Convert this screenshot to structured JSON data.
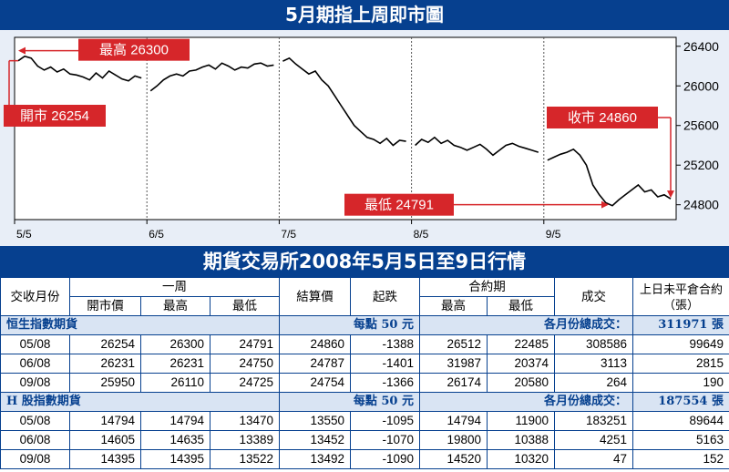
{
  "chart_title": "5月期指上周即市圖",
  "table_title": "期貨交易所2008年5月5日至9日行情",
  "chart_data": {
    "type": "line",
    "title": "5月期指上周即市圖",
    "x_tick_labels": [
      "5/5",
      "6/5",
      "7/5",
      "8/5",
      "9/5"
    ],
    "y_ticks": [
      24800,
      25200,
      25600,
      26000,
      26400
    ],
    "ylim": [
      24650,
      26490
    ],
    "grid": "vertical dashed at day boundaries",
    "line_color": "#000000",
    "days": [
      {
        "day": "5/5",
        "values": [
          26254,
          26300,
          26280,
          26200,
          26160,
          26190,
          26140,
          26170,
          26120,
          26110,
          26090,
          26060,
          26130,
          26080,
          26150,
          26110,
          26070,
          26050,
          26100,
          26080
        ]
      },
      {
        "day": "6/5",
        "values": [
          25950,
          26000,
          26060,
          26100,
          26120,
          26100,
          26150,
          26160,
          26190,
          26210,
          26170,
          26230,
          26200,
          26160,
          26190,
          26180,
          26220,
          26231,
          26200,
          26210
        ]
      },
      {
        "day": "7/5",
        "values": [
          26250,
          26280,
          26220,
          26170,
          26120,
          26150,
          26060,
          26000,
          25900,
          25800,
          25700,
          25600,
          25540,
          25480,
          25460,
          25420,
          25470,
          25400,
          25450,
          25440
        ]
      },
      {
        "day": "8/5",
        "values": [
          25400,
          25460,
          25430,
          25480,
          25420,
          25450,
          25400,
          25380,
          25350,
          25380,
          25410,
          25360,
          25300,
          25350,
          25400,
          25420,
          25390,
          25370,
          25350,
          25330
        ]
      },
      {
        "day": "9/5",
        "values": [
          25250,
          25280,
          25310,
          25330,
          25360,
          25300,
          25200,
          25000,
          24900,
          24820,
          24791,
          24850,
          24900,
          24950,
          25000,
          24930,
          24950,
          24880,
          24900,
          24860
        ]
      }
    ],
    "annotations": [
      {
        "label": "最高 26300",
        "value": 26300
      },
      {
        "label": "開市 26254",
        "value": 26254
      },
      {
        "label": "收市 24860",
        "value": 24860
      },
      {
        "label": "最低 24791",
        "value": 24791
      }
    ]
  },
  "table": {
    "headers": {
      "month": "交收月份",
      "week": "一周",
      "open": "開市價",
      "high": "最高",
      "low": "最低",
      "settle": "結算價",
      "change": "起跌",
      "contract": "合約期",
      "c_high": "最高",
      "c_low": "最低",
      "volume": "成交",
      "oi": "上日未平倉合約（張）"
    },
    "groups": [
      {
        "name": "恒生指數期貨",
        "point_value": "每點 50 元",
        "total_label": "各月份總成交：",
        "total_value": "311971 張",
        "rows": [
          [
            "05/08",
            "26254",
            "26300",
            "24791",
            "24860",
            "-1388",
            "26512",
            "22485",
            "308586",
            "99649"
          ],
          [
            "06/08",
            "26231",
            "26231",
            "24750",
            "24787",
            "-1401",
            "31987",
            "20374",
            "3113",
            "2815"
          ],
          [
            "09/08",
            "25950",
            "26110",
            "24725",
            "24754",
            "-1366",
            "26174",
            "20580",
            "264",
            "190"
          ]
        ]
      },
      {
        "name": "H 股指數期貨",
        "point_value": "每點 50 元",
        "total_label": "各月份總成交：",
        "total_value": "187554 張",
        "rows": [
          [
            "05/08",
            "14794",
            "14794",
            "13470",
            "13550",
            "-1095",
            "14794",
            "11900",
            "183251",
            "89644"
          ],
          [
            "06/08",
            "14605",
            "14635",
            "13389",
            "13452",
            "-1070",
            "19800",
            "10388",
            "4251",
            "5163"
          ],
          [
            "09/08",
            "14395",
            "14395",
            "13522",
            "13492",
            "-1090",
            "14520",
            "10320",
            "47",
            "152"
          ]
        ]
      }
    ]
  }
}
